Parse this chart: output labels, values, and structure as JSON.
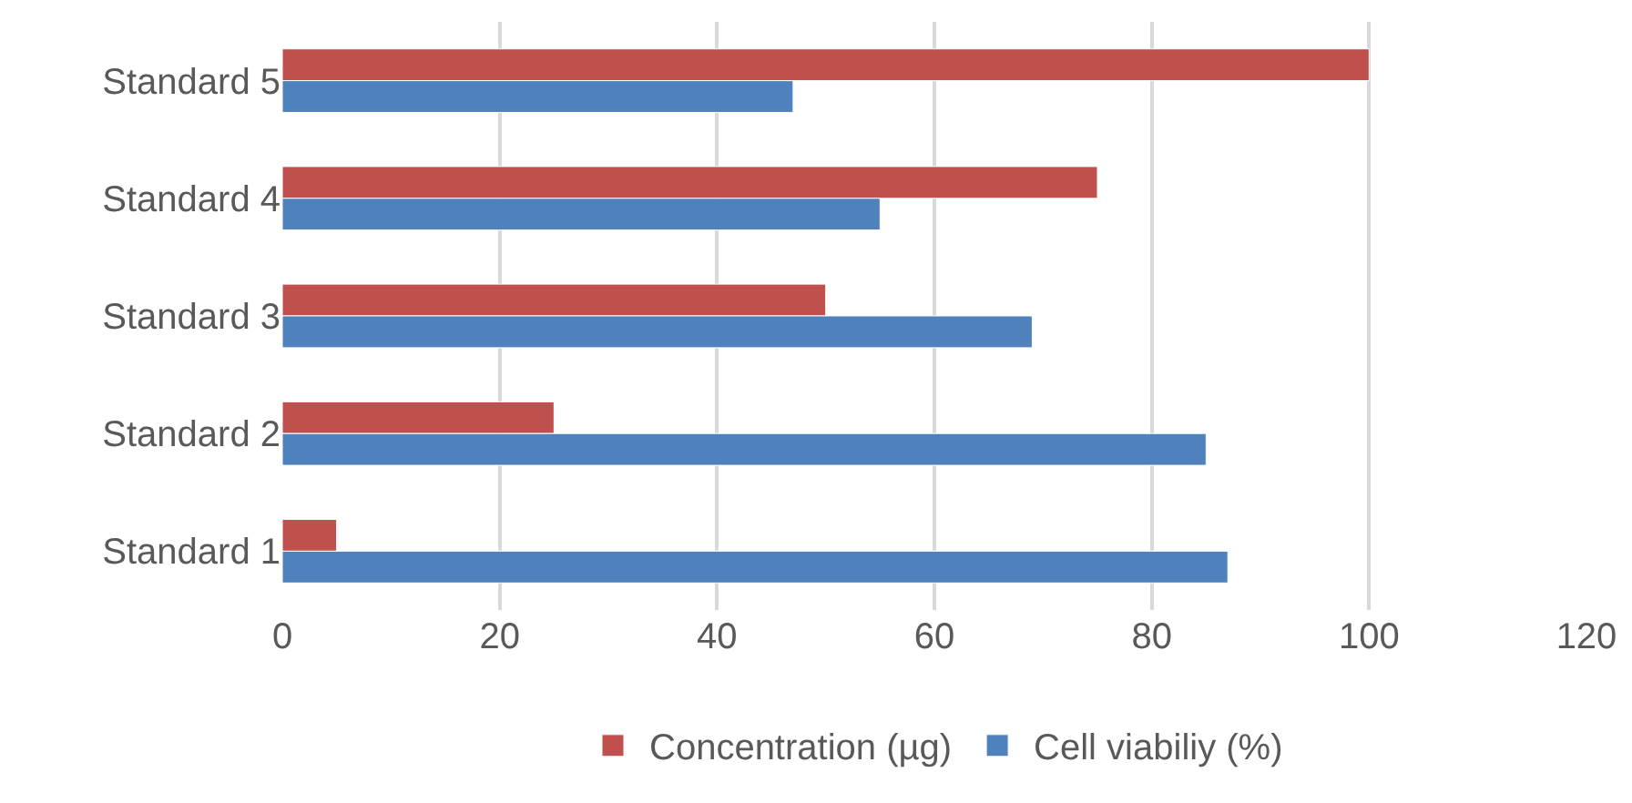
{
  "chart_data": {
    "type": "bar",
    "orientation": "horizontal",
    "categories": [
      "Standard 5",
      "Standard 4",
      "Standard 3",
      "Standard 2",
      "Standard 1"
    ],
    "series": [
      {
        "name": "Concentration (µg)",
        "color": "#c0504d",
        "values": [
          100,
          75,
          50,
          25,
          5
        ]
      },
      {
        "name": "Cell viabiliy (%)",
        "color": "#4f81bd",
        "values": [
          47,
          55,
          69,
          85,
          87
        ]
      }
    ],
    "xlim": [
      0,
      120
    ],
    "xticks": [
      0,
      20,
      40,
      60,
      80,
      100,
      120
    ],
    "grid": "x",
    "legend": "bottom"
  }
}
